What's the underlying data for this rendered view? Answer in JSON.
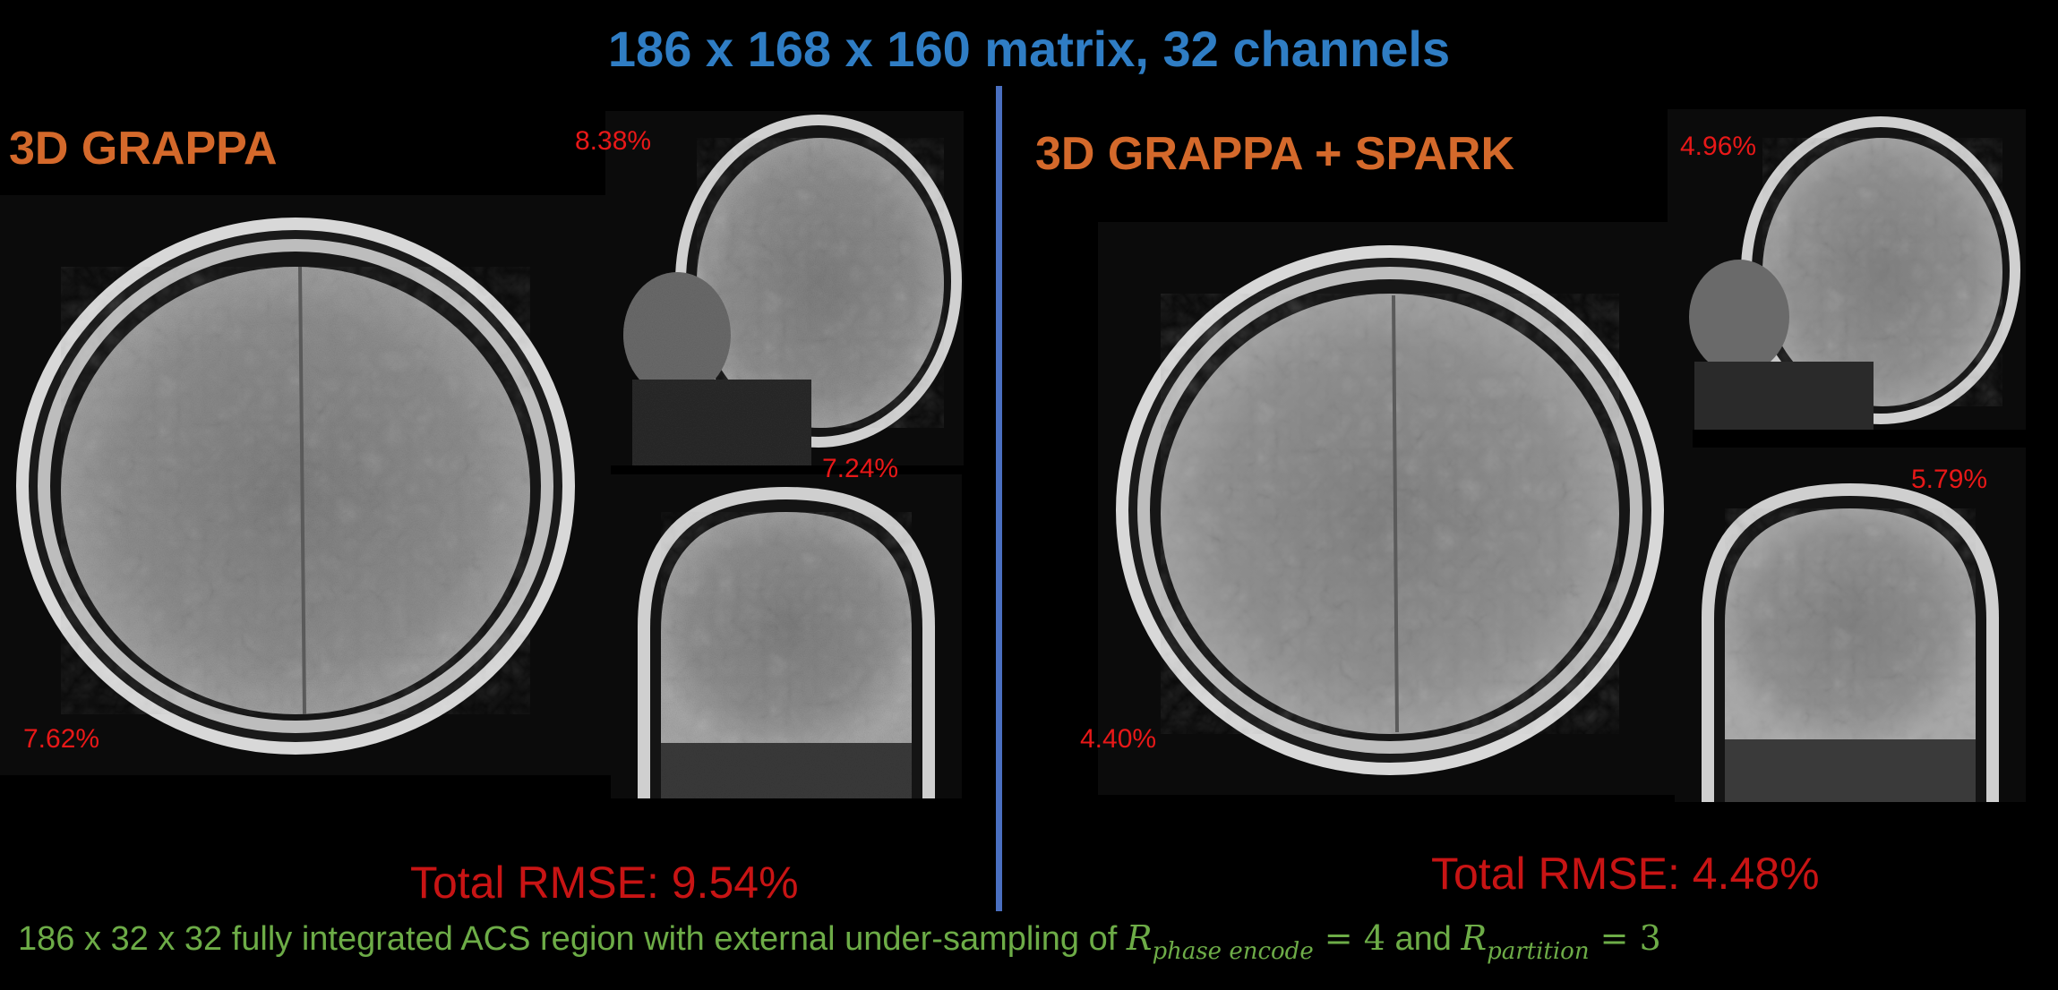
{
  "header": {
    "title": "186 x 168 x 160 matrix, 32 channels"
  },
  "panels": [
    {
      "title": "3D GRAPPA",
      "axial_error": "7.62%",
      "sagittal_error": "8.38%",
      "coronal_error": "7.24%",
      "total_rmse": "Total RMSE: 9.54%"
    },
    {
      "title": "3D GRAPPA + SPARK",
      "axial_error": "4.40%",
      "sagittal_error": "4.96%",
      "coronal_error": "5.79%",
      "total_rmse": "Total RMSE: 4.48%"
    }
  ],
  "footer": {
    "text_before": "186 x 32 x 32 fully integrated ACS region with external under-sampling of ",
    "r1_symbol": "R",
    "r1_subscript": "phase encode",
    "equals": " = ",
    "r1_value": "4",
    "connector": " and ",
    "r2_symbol": "R",
    "r2_subscript": "partition",
    "r2_value": "3"
  },
  "colors": {
    "title": "#2f7dc4",
    "panel_title": "#d4692b",
    "error_label": "#e81818",
    "rmse": "#c81414",
    "footer": "#6dac47",
    "divider": "#4a6fc0"
  }
}
